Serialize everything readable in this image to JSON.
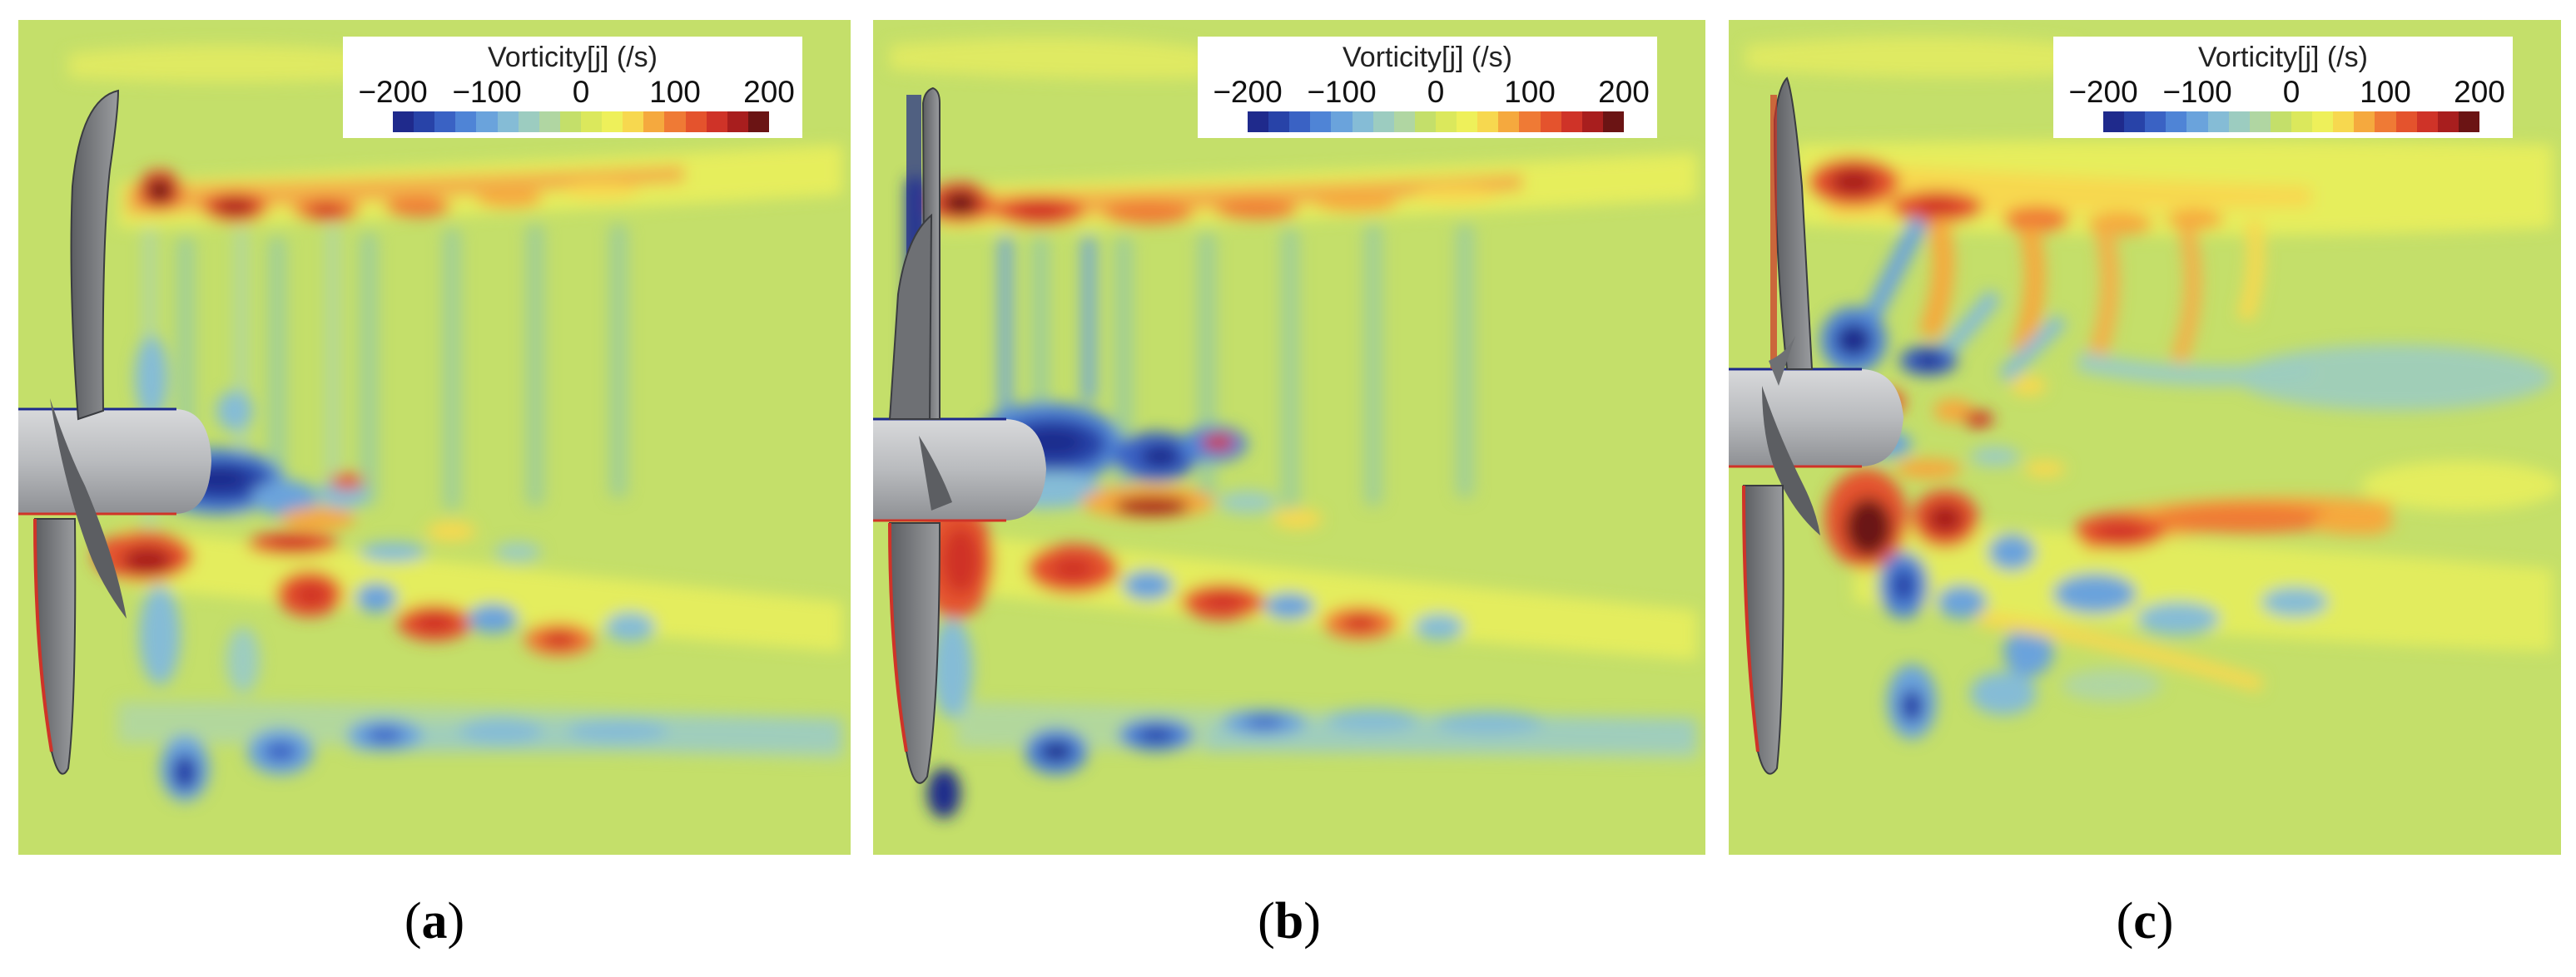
{
  "colorbar": {
    "title": "Vorticity[j] (/s)",
    "ticks": [
      "−200",
      "−100",
      "0",
      "100",
      "200"
    ],
    "colors": [
      "#1f2a8c",
      "#2843a8",
      "#3a62c4",
      "#4f84d6",
      "#6aa3dc",
      "#85bcd6",
      "#9cccc0",
      "#b0d6a2",
      "#c4df6a",
      "#dbe85c",
      "#eef05a",
      "#f7d84f",
      "#f5a93e",
      "#ef7a35",
      "#e4532d",
      "#cf3328",
      "#a81e1e",
      "#6b1414"
    ]
  },
  "panels": [
    {
      "label_letter": "a"
    },
    {
      "label_letter": "b"
    },
    {
      "label_letter": "c"
    }
  ],
  "colors": {
    "background_field": "#c4df6a",
    "positive_strong": "#b01e24",
    "negative_strong": "#1c2a8c",
    "propeller_gray": "#8c8e91"
  }
}
